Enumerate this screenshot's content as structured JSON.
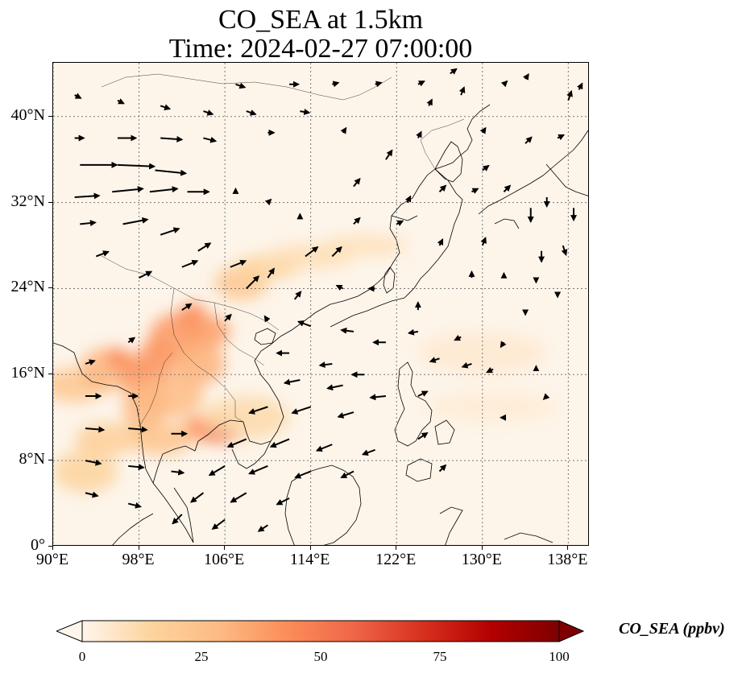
{
  "title": {
    "line1": "CO_SEA at 1.5km",
    "line2": "Time: 2024-02-27 07:00:00"
  },
  "map": {
    "extent": {
      "lon": [
        90,
        140
      ],
      "lat": [
        0,
        45
      ]
    },
    "lon_ticks": [
      {
        "value": 90,
        "label": "90°E"
      },
      {
        "value": 98,
        "label": "98°E"
      },
      {
        "value": 106,
        "label": "106°E"
      },
      {
        "value": 114,
        "label": "114°E"
      },
      {
        "value": 122,
        "label": "122°E"
      },
      {
        "value": 130,
        "label": "130°E"
      },
      {
        "value": 138,
        "label": "138°E"
      }
    ],
    "lat_ticks": [
      {
        "value": 0,
        "label": "0°"
      },
      {
        "value": 8,
        "label": "8°N"
      },
      {
        "value": 16,
        "label": "16°N"
      },
      {
        "value": 24,
        "label": "24°N"
      },
      {
        "value": 32,
        "label": "32°N"
      },
      {
        "value": 40,
        "label": "40°N"
      }
    ],
    "grid": "dotted",
    "background_color": "#fdf5ea",
    "coastline_color": "#000000"
  },
  "colorbar": {
    "label": "CO_SEA (ppbv)",
    "ticks": [
      {
        "value": 0,
        "label": "0"
      },
      {
        "value": 25,
        "label": "25"
      },
      {
        "value": 50,
        "label": "50"
      },
      {
        "value": 75,
        "label": "75"
      },
      {
        "value": 100,
        "label": "100"
      }
    ],
    "range": [
      0,
      100
    ],
    "extend": "both",
    "colors": [
      "#fff5eb",
      "#fdd49e",
      "#fdbb84",
      "#fc8d59",
      "#ef6548",
      "#d7301f",
      "#b30000",
      "#7f0000"
    ]
  },
  "co_plumes": [
    {
      "lon": 92.0,
      "lat": 15.0,
      "value": 22,
      "rlon": 3.0,
      "rlat": 1.6
    },
    {
      "lon": 95.0,
      "lat": 16.5,
      "value": 30,
      "rlon": 2.5,
      "rlat": 2.0
    },
    {
      "lon": 96.0,
      "lat": 17.5,
      "value": 45,
      "rlon": 1.0,
      "rlat": 1.0
    },
    {
      "lon": 97.5,
      "lat": 16.0,
      "value": 40,
      "rlon": 1.2,
      "rlat": 2.0
    },
    {
      "lon": 99.5,
      "lat": 17.0,
      "value": 42,
      "rlon": 1.5,
      "rlat": 2.5
    },
    {
      "lon": 101.5,
      "lat": 19.5,
      "value": 40,
      "rlon": 2.5,
      "rlat": 2.2
    },
    {
      "lon": 103.0,
      "lat": 21.5,
      "value": 45,
      "rlon": 1.3,
      "rlat": 1.2
    },
    {
      "lon": 104.5,
      "lat": 20.0,
      "value": 38,
      "rlon": 2.0,
      "rlat": 1.5
    },
    {
      "lon": 103.5,
      "lat": 17.0,
      "value": 32,
      "rlon": 2.5,
      "rlat": 2.0
    },
    {
      "lon": 101.0,
      "lat": 14.0,
      "value": 28,
      "rlon": 3.0,
      "rlat": 2.0
    },
    {
      "lon": 98.5,
      "lat": 13.0,
      "value": 30,
      "rlon": 2.0,
      "rlat": 2.5
    },
    {
      "lon": 104.5,
      "lat": 11.0,
      "value": 42,
      "rlon": 2.5,
      "rlat": 1.3
    },
    {
      "lon": 106.0,
      "lat": 10.5,
      "value": 60,
      "rlon": 1.5,
      "rlat": 0.8
    },
    {
      "lon": 100.0,
      "lat": 10.0,
      "value": 24,
      "rlon": 3.0,
      "rlat": 1.5
    },
    {
      "lon": 95.0,
      "lat": 10.0,
      "value": 18,
      "rlon": 3.0,
      "rlat": 1.5
    },
    {
      "lon": 93.0,
      "lat": 7.0,
      "value": 15,
      "rlon": 3.0,
      "rlat": 2.0
    },
    {
      "lon": 107.5,
      "lat": 24.5,
      "value": 22,
      "rlon": 2.5,
      "rlat": 1.6
    },
    {
      "lon": 110.0,
      "lat": 26.0,
      "value": 15,
      "rlon": 3.0,
      "rlat": 1.2
    },
    {
      "lon": 114.0,
      "lat": 27.0,
      "value": 10,
      "rlon": 4.0,
      "rlat": 1.2
    },
    {
      "lon": 119.0,
      "lat": 28.0,
      "value": 9,
      "rlon": 4.0,
      "rlat": 1.0
    },
    {
      "lon": 108.0,
      "lat": 12.0,
      "value": 12,
      "rlon": 4.0,
      "rlat": 2.0
    },
    {
      "lon": 130.0,
      "lat": 18.0,
      "value": 5,
      "rlon": 6.0,
      "rlat": 2.0
    },
    {
      "lon": 131.0,
      "lat": 13.0,
      "value": 4,
      "rlon": 6.0,
      "rlat": 1.5
    }
  ],
  "wind_vectors": [
    {
      "lon": 92.5,
      "lat": 35.5,
      "u": 12,
      "v": 0
    },
    {
      "lon": 96,
      "lat": 35.5,
      "u": 12,
      "v": -0.5
    },
    {
      "lon": 99.5,
      "lat": 35,
      "u": 10,
      "v": -1
    },
    {
      "lon": 92,
      "lat": 38,
      "u": 3,
      "v": 0
    },
    {
      "lon": 96,
      "lat": 38,
      "u": 6,
      "v": 0
    },
    {
      "lon": 100,
      "lat": 38,
      "u": 7,
      "v": -0.5
    },
    {
      "lon": 104,
      "lat": 38,
      "u": 4,
      "v": -1
    },
    {
      "lon": 92,
      "lat": 32.5,
      "u": 8,
      "v": 0.5
    },
    {
      "lon": 95.5,
      "lat": 33,
      "u": 10,
      "v": 1
    },
    {
      "lon": 99,
      "lat": 33,
      "u": 9,
      "v": 1
    },
    {
      "lon": 102.5,
      "lat": 33,
      "u": 7,
      "v": 0
    },
    {
      "lon": 92.5,
      "lat": 30,
      "u": 5,
      "v": 0.5
    },
    {
      "lon": 96.5,
      "lat": 30,
      "u": 8,
      "v": 1.5
    },
    {
      "lon": 100,
      "lat": 29,
      "u": 6,
      "v": 2
    },
    {
      "lon": 103.5,
      "lat": 27.5,
      "u": 4,
      "v": 2.5
    },
    {
      "lon": 106.5,
      "lat": 26,
      "u": 5,
      "v": 2
    },
    {
      "lon": 102,
      "lat": 26,
      "u": 5,
      "v": 2
    },
    {
      "lon": 98,
      "lat": 25,
      "u": 4,
      "v": 2
    },
    {
      "lon": 94,
      "lat": 27,
      "u": 4,
      "v": 1.5
    },
    {
      "lon": 108,
      "lat": 24,
      "u": 4,
      "v": 4
    },
    {
      "lon": 110,
      "lat": 25,
      "u": 2,
      "v": 3
    },
    {
      "lon": 113.5,
      "lat": 27,
      "u": 4,
      "v": 3
    },
    {
      "lon": 112.5,
      "lat": 23,
      "u": 2,
      "v": 2.5
    },
    {
      "lon": 116,
      "lat": 27,
      "u": 3,
      "v": 3
    },
    {
      "lon": 114,
      "lat": 20.5,
      "u": -4,
      "v": 1.5
    },
    {
      "lon": 118,
      "lat": 20,
      "u": -4,
      "v": 0.5
    },
    {
      "lon": 121,
      "lat": 19,
      "u": -4,
      "v": 0
    },
    {
      "lon": 112,
      "lat": 18,
      "u": -4,
      "v": 0
    },
    {
      "lon": 116,
      "lat": 17,
      "u": -4,
      "v": -0.5
    },
    {
      "lon": 119,
      "lat": 16,
      "u": -4,
      "v": 0
    },
    {
      "lon": 113,
      "lat": 15.5,
      "u": -5,
      "v": -1
    },
    {
      "lon": 117,
      "lat": 15,
      "u": -5,
      "v": -1
    },
    {
      "lon": 121,
      "lat": 14,
      "u": -5,
      "v": -0.5
    },
    {
      "lon": 110,
      "lat": 13,
      "u": -6,
      "v": -2
    },
    {
      "lon": 114,
      "lat": 13,
      "u": -6,
      "v": -2
    },
    {
      "lon": 118,
      "lat": 12.5,
      "u": -5,
      "v": -1.5
    },
    {
      "lon": 108,
      "lat": 10,
      "u": -6,
      "v": -2.5
    },
    {
      "lon": 112,
      "lat": 10,
      "u": -6,
      "v": -2.5
    },
    {
      "lon": 116,
      "lat": 9.5,
      "u": -5,
      "v": -2
    },
    {
      "lon": 120,
      "lat": 9,
      "u": -4,
      "v": -1.5
    },
    {
      "lon": 106,
      "lat": 7.5,
      "u": -5,
      "v": -3
    },
    {
      "lon": 110,
      "lat": 7.5,
      "u": -6,
      "v": -2.5
    },
    {
      "lon": 114,
      "lat": 7,
      "u": -5,
      "v": -2
    },
    {
      "lon": 118,
      "lat": 7,
      "u": -4,
      "v": -2
    },
    {
      "lon": 104,
      "lat": 5,
      "u": -4,
      "v": -3
    },
    {
      "lon": 108,
      "lat": 5,
      "u": -5,
      "v": -3
    },
    {
      "lon": 112,
      "lat": 4.5,
      "u": -4,
      "v": -2
    },
    {
      "lon": 102,
      "lat": 3,
      "u": -3,
      "v": -3
    },
    {
      "lon": 106,
      "lat": 2.5,
      "u": -4,
      "v": -3
    },
    {
      "lon": 110,
      "lat": 2,
      "u": -3,
      "v": -2
    },
    {
      "lon": 93,
      "lat": 11,
      "u": 6,
      "v": -0.5
    },
    {
      "lon": 97,
      "lat": 11,
      "u": 6,
      "v": -0.5
    },
    {
      "lon": 101,
      "lat": 10.5,
      "u": 5,
      "v": 0
    },
    {
      "lon": 93,
      "lat": 8,
      "u": 5,
      "v": -1
    },
    {
      "lon": 97,
      "lat": 7.5,
      "u": 5,
      "v": -0.5
    },
    {
      "lon": 101,
      "lat": 7,
      "u": 4,
      "v": -0.5
    },
    {
      "lon": 93,
      "lat": 5,
      "u": 4,
      "v": -1
    },
    {
      "lon": 97,
      "lat": 4,
      "u": 4,
      "v": -1
    },
    {
      "lon": 93,
      "lat": 14,
      "u": 5,
      "v": 0
    },
    {
      "lon": 97,
      "lat": 14,
      "u": 3,
      "v": 0
    },
    {
      "lon": 93,
      "lat": 17,
      "u": 3,
      "v": 1
    },
    {
      "lon": 97,
      "lat": 19,
      "u": 2,
      "v": 1.5
    },
    {
      "lon": 102,
      "lat": 22,
      "u": 3,
      "v": 2
    },
    {
      "lon": 106,
      "lat": 21,
      "u": 2,
      "v": 2
    },
    {
      "lon": 110,
      "lat": 21,
      "u": -1,
      "v": 1.5
    },
    {
      "lon": 124,
      "lat": 14,
      "u": 3,
      "v": 1.5
    },
    {
      "lon": 124,
      "lat": 10,
      "u": 3,
      "v": 2
    },
    {
      "lon": 126,
      "lat": 7,
      "u": 2,
      "v": 2
    },
    {
      "lon": 126,
      "lat": 17.5,
      "u": -3,
      "v": -1
    },
    {
      "lon": 129,
      "lat": 17,
      "u": -3,
      "v": -1
    },
    {
      "lon": 124,
      "lat": 20,
      "u": -3,
      "v": -0.5
    },
    {
      "lon": 128,
      "lat": 19.5,
      "u": -2,
      "v": -1
    },
    {
      "lon": 132,
      "lat": 19,
      "u": -1,
      "v": -1.5
    },
    {
      "lon": 131,
      "lat": 16.5,
      "u": -2,
      "v": -1
    },
    {
      "lon": 135,
      "lat": 16.5,
      "u": 0,
      "v": 1
    },
    {
      "lon": 136,
      "lat": 14,
      "u": -1,
      "v": -1
    },
    {
      "lon": 132,
      "lat": 12,
      "u": -1,
      "v": 0
    },
    {
      "lon": 134,
      "lat": 22,
      "u": 0,
      "v": -1.5
    },
    {
      "lon": 132,
      "lat": 25,
      "u": 0,
      "v": 1.5
    },
    {
      "lon": 135,
      "lat": 25,
      "u": 0,
      "v": -1.5
    },
    {
      "lon": 137,
      "lat": 23.5,
      "u": 0,
      "v": -1
    },
    {
      "lon": 129,
      "lat": 25,
      "u": 0,
      "v": 2
    },
    {
      "lon": 126,
      "lat": 28,
      "u": 1,
      "v": 2
    },
    {
      "lon": 130,
      "lat": 28,
      "u": 1,
      "v": 2.5
    },
    {
      "lon": 124,
      "lat": 22,
      "u": 0,
      "v": 2.5
    },
    {
      "lon": 120,
      "lat": 24,
      "u": -2,
      "v": 0
    },
    {
      "lon": 117,
      "lat": 24,
      "u": -2,
      "v": 1
    },
    {
      "lon": 134.5,
      "lat": 31.5,
      "u": 0,
      "v": -4.5
    },
    {
      "lon": 135.5,
      "lat": 27.5,
      "u": 0,
      "v": -3.5
    },
    {
      "lon": 138.5,
      "lat": 31.5,
      "u": 0,
      "v": -4
    },
    {
      "lon": 137.5,
      "lat": 28,
      "u": 1,
      "v": -3
    },
    {
      "lon": 136,
      "lat": 32.5,
      "u": 0,
      "v": -3
    },
    {
      "lon": 132,
      "lat": 33,
      "u": 2,
      "v": 2
    },
    {
      "lon": 129,
      "lat": 33,
      "u": 2,
      "v": 1
    },
    {
      "lon": 126,
      "lat": 33,
      "u": 2,
      "v": 2
    },
    {
      "lon": 123,
      "lat": 32,
      "u": 1,
      "v": 2
    },
    {
      "lon": 122,
      "lat": 30,
      "u": 2,
      "v": 1
    },
    {
      "lon": 118,
      "lat": 30,
      "u": 2,
      "v": 2
    },
    {
      "lon": 113,
      "lat": 30.5,
      "u": 0,
      "v": 1.5
    },
    {
      "lon": 110,
      "lat": 32,
      "u": 1,
      "v": 1
    },
    {
      "lon": 107,
      "lat": 33,
      "u": 0,
      "v": 1
    },
    {
      "lon": 118,
      "lat": 33.5,
      "u": 2,
      "v": 2.5
    },
    {
      "lon": 121,
      "lat": 36,
      "u": 2,
      "v": 3
    },
    {
      "lon": 124,
      "lat": 38,
      "u": 1,
      "v": 2
    },
    {
      "lon": 117,
      "lat": 38.5,
      "u": 1,
      "v": 1.5
    },
    {
      "lon": 110,
      "lat": 38.5,
      "u": 2,
      "v": 0
    },
    {
      "lon": 113,
      "lat": 40.5,
      "u": 3,
      "v": -0.5
    },
    {
      "lon": 108,
      "lat": 40.5,
      "u": 3,
      "v": -1
    },
    {
      "lon": 104,
      "lat": 40.5,
      "u": 3,
      "v": -1
    },
    {
      "lon": 100,
      "lat": 41,
      "u": 3,
      "v": -1
    },
    {
      "lon": 96,
      "lat": 41.5,
      "u": 2,
      "v": -1
    },
    {
      "lon": 92,
      "lat": 42,
      "u": 2,
      "v": -1
    },
    {
      "lon": 107,
      "lat": 43,
      "u": 3,
      "v": -1
    },
    {
      "lon": 112,
      "lat": 43,
      "u": 3,
      "v": 0
    },
    {
      "lon": 116,
      "lat": 43,
      "u": 2,
      "v": 0.5
    },
    {
      "lon": 120,
      "lat": 43,
      "u": 2,
      "v": 0.5
    },
    {
      "lon": 124,
      "lat": 43,
      "u": 2,
      "v": 1
    },
    {
      "lon": 127,
      "lat": 44,
      "u": 2,
      "v": 1.5
    },
    {
      "lon": 125,
      "lat": 41,
      "u": 1,
      "v": 2
    },
    {
      "lon": 128,
      "lat": 42,
      "u": 1,
      "v": 2.5
    },
    {
      "lon": 132,
      "lat": 43,
      "u": 1,
      "v": 1
    },
    {
      "lon": 134,
      "lat": 43.5,
      "u": 1,
      "v": 1.5
    },
    {
      "lon": 138,
      "lat": 41.5,
      "u": 1,
      "v": 3
    },
    {
      "lon": 139,
      "lat": 42.5,
      "u": 1,
      "v": 2
    },
    {
      "lon": 134,
      "lat": 37.5,
      "u": 2,
      "v": 2
    },
    {
      "lon": 137,
      "lat": 38,
      "u": 2,
      "v": 1
    },
    {
      "lon": 130,
      "lat": 38.5,
      "u": 1,
      "v": 1.5
    },
    {
      "lon": 130,
      "lat": 35,
      "u": 2,
      "v": 1.5
    }
  ]
}
